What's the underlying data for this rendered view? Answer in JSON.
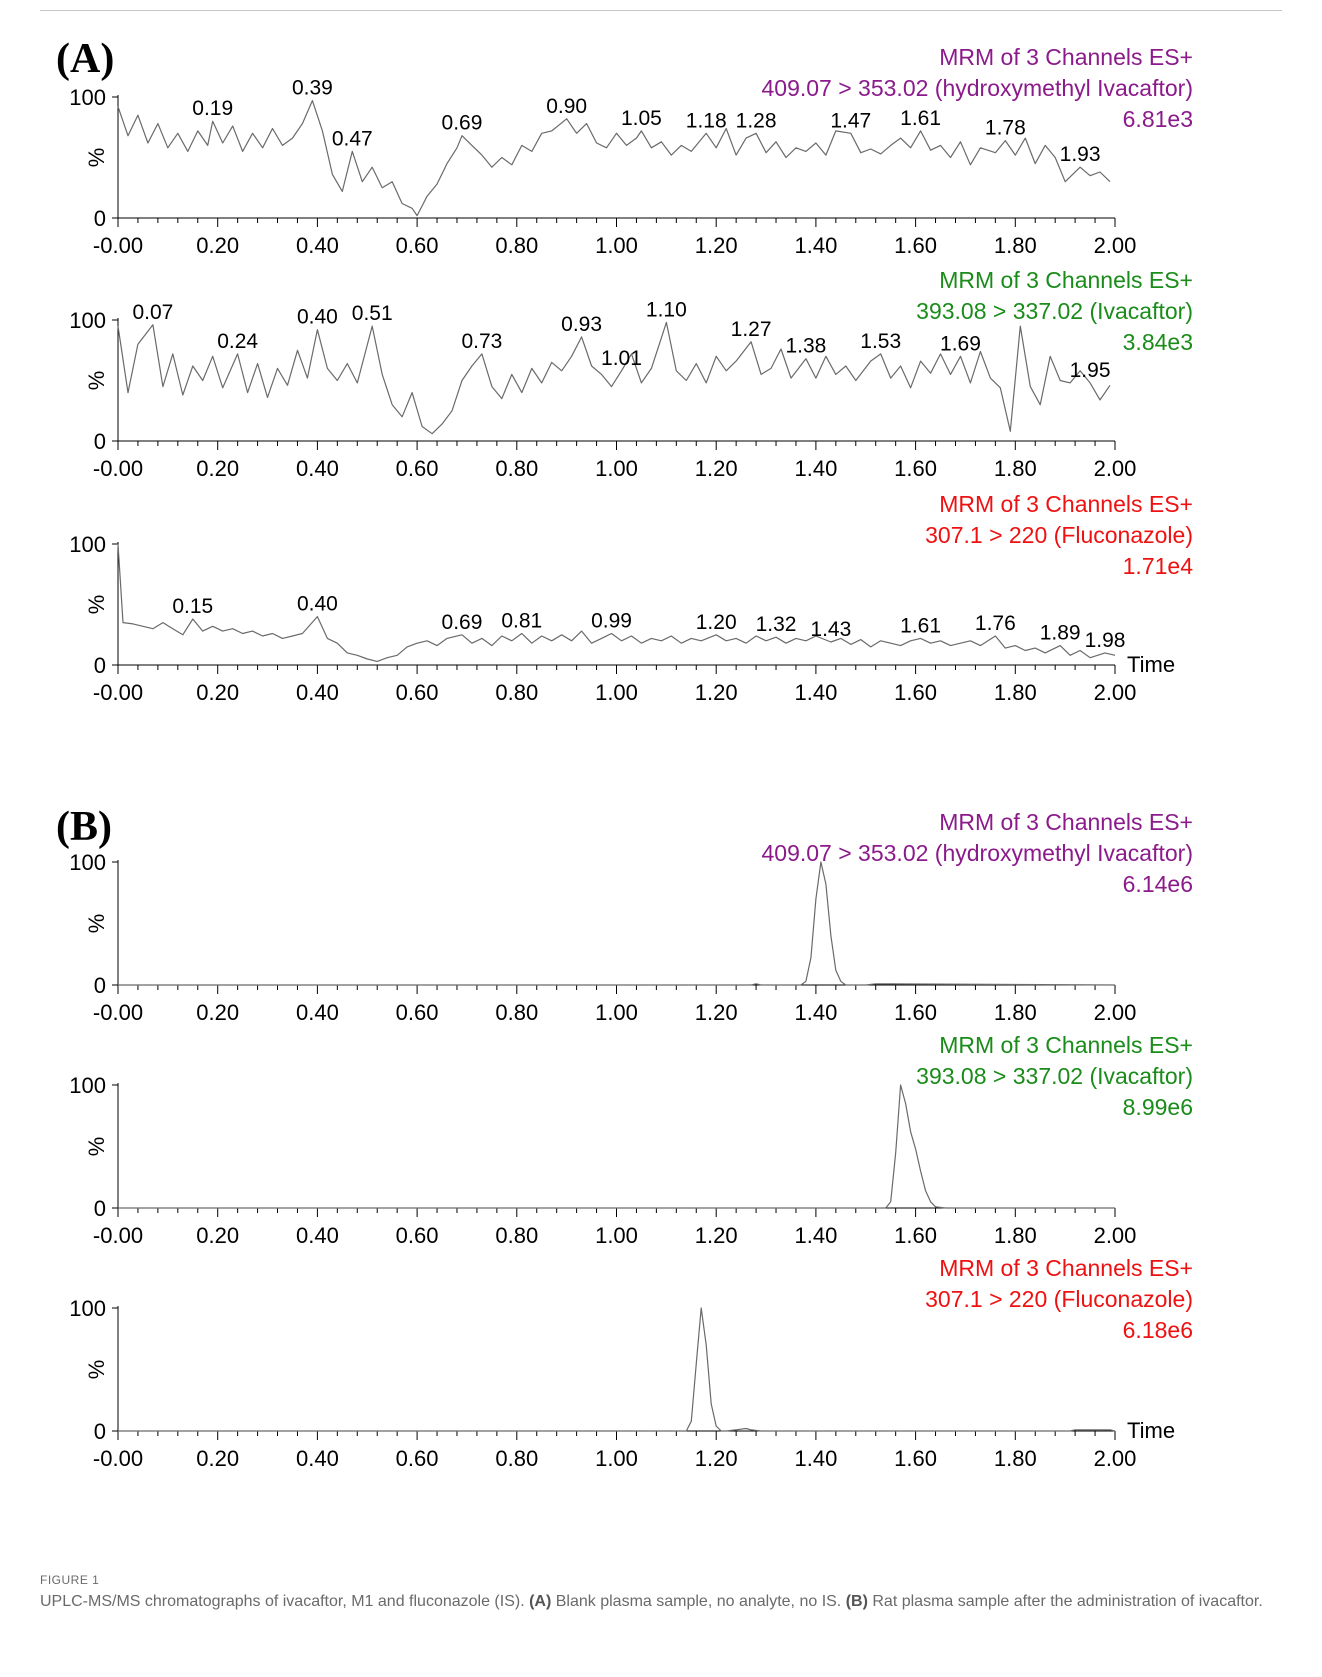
{
  "colors": {
    "purple": "#8b1a8b",
    "green": "#1a8c1a",
    "red": "#ee1111",
    "trace": "#6a6a6a",
    "axis": "#000000"
  },
  "caption": {
    "label": "FIGURE 1",
    "text_start": "UPLC-MS/MS chromatographs of ivacaftor, M1 and fluconazole (IS). ",
    "a_ref": "(A)",
    "a_text": " Blank plasma sample, no analyte, no IS. ",
    "b_ref": "(B)",
    "b_text": " Rat plasma sample after the administration of ivacaftor."
  },
  "chart_data": [
    {
      "type": "line",
      "panel": "(A)",
      "header": [
        "MRM of 3 Channels ES+",
        "409.07 > 353.02 (hydroxymethyl Ivacaftor)",
        "6.81e3"
      ],
      "color": "purple",
      "xlabel": "",
      "ylabel": "%",
      "xlim": [
        0,
        2.0
      ],
      "ylim": [
        0,
        100
      ],
      "xticks": [
        "-0.00",
        "0.20",
        "0.40",
        "0.60",
        "0.80",
        "1.00",
        "1.20",
        "1.40",
        "1.60",
        "1.80",
        "2.00"
      ],
      "yticks": [
        "0",
        "100"
      ],
      "x": [
        0,
        0.02,
        0.04,
        0.06,
        0.08,
        0.1,
        0.12,
        0.14,
        0.16,
        0.18,
        0.19,
        0.21,
        0.23,
        0.25,
        0.27,
        0.29,
        0.31,
        0.33,
        0.35,
        0.37,
        0.39,
        0.41,
        0.43,
        0.45,
        0.47,
        0.49,
        0.51,
        0.53,
        0.55,
        0.57,
        0.59,
        0.6,
        0.62,
        0.64,
        0.66,
        0.68,
        0.69,
        0.71,
        0.73,
        0.75,
        0.77,
        0.79,
        0.81,
        0.83,
        0.85,
        0.87,
        0.9,
        0.92,
        0.94,
        0.96,
        0.98,
        1.0,
        1.02,
        1.04,
        1.05,
        1.07,
        1.09,
        1.11,
        1.13,
        1.15,
        1.18,
        1.2,
        1.22,
        1.24,
        1.26,
        1.28,
        1.3,
        1.32,
        1.34,
        1.36,
        1.38,
        1.4,
        1.42,
        1.44,
        1.47,
        1.49,
        1.51,
        1.53,
        1.55,
        1.57,
        1.59,
        1.61,
        1.63,
        1.65,
        1.67,
        1.69,
        1.71,
        1.73,
        1.76,
        1.78,
        1.8,
        1.82,
        1.84,
        1.86,
        1.88,
        1.9,
        1.93,
        1.95,
        1.97,
        1.99
      ],
      "y": [
        92,
        68,
        85,
        62,
        78,
        58,
        70,
        55,
        72,
        60,
        80,
        62,
        76,
        55,
        70,
        58,
        74,
        60,
        66,
        78,
        97,
        72,
        36,
        22,
        55,
        30,
        42,
        25,
        30,
        12,
        8,
        2,
        18,
        28,
        45,
        58,
        68,
        60,
        52,
        42,
        50,
        44,
        60,
        55,
        70,
        72,
        82,
        70,
        78,
        62,
        58,
        70,
        60,
        66,
        72,
        58,
        63,
        52,
        60,
        55,
        70,
        58,
        74,
        52,
        66,
        70,
        54,
        63,
        50,
        58,
        55,
        62,
        52,
        72,
        70,
        54,
        57,
        53,
        60,
        66,
        58,
        72,
        56,
        60,
        50,
        63,
        44,
        58,
        54,
        64,
        52,
        66,
        45,
        60,
        50,
        30,
        42,
        35,
        38,
        30
      ],
      "peak_labels": [
        {
          "x": 0.19,
          "y": 80,
          "text": "0.19"
        },
        {
          "x": 0.39,
          "y": 97,
          "text": "0.39"
        },
        {
          "x": 0.47,
          "y": 55,
          "text": "0.47"
        },
        {
          "x": 0.69,
          "y": 68,
          "text": "0.69"
        },
        {
          "x": 0.9,
          "y": 82,
          "text": "0.90"
        },
        {
          "x": 1.05,
          "y": 72,
          "text": "1.05"
        },
        {
          "x": 1.18,
          "y": 70,
          "text": "1.18"
        },
        {
          "x": 1.28,
          "y": 70,
          "text": "1.28"
        },
        {
          "x": 1.47,
          "y": 70,
          "text": "1.47"
        },
        {
          "x": 1.61,
          "y": 72,
          "text": "1.61"
        },
        {
          "x": 1.78,
          "y": 64,
          "text": "1.78"
        },
        {
          "x": 1.93,
          "y": 42,
          "text": "1.93"
        }
      ]
    },
    {
      "type": "line",
      "panel": "",
      "header": [
        "MRM of 3 Channels ES+",
        "393.08 > 337.02 (Ivacaftor)",
        "3.84e3"
      ],
      "color": "green",
      "xlabel": "",
      "ylabel": "%",
      "xlim": [
        0,
        2.0
      ],
      "ylim": [
        0,
        100
      ],
      "xticks": [
        "-0.00",
        "0.20",
        "0.40",
        "0.60",
        "0.80",
        "1.00",
        "1.20",
        "1.40",
        "1.60",
        "1.80",
        "2.00"
      ],
      "yticks": [
        "0",
        "100"
      ],
      "x": [
        0,
        0.02,
        0.04,
        0.07,
        0.09,
        0.11,
        0.13,
        0.15,
        0.17,
        0.19,
        0.21,
        0.24,
        0.26,
        0.28,
        0.3,
        0.32,
        0.34,
        0.36,
        0.38,
        0.4,
        0.42,
        0.44,
        0.46,
        0.48,
        0.51,
        0.53,
        0.55,
        0.57,
        0.59,
        0.61,
        0.63,
        0.65,
        0.67,
        0.69,
        0.71,
        0.73,
        0.75,
        0.77,
        0.79,
        0.81,
        0.83,
        0.85,
        0.87,
        0.89,
        0.91,
        0.93,
        0.95,
        0.97,
        0.99,
        1.01,
        1.03,
        1.05,
        1.07,
        1.1,
        1.12,
        1.14,
        1.16,
        1.18,
        1.2,
        1.22,
        1.24,
        1.27,
        1.29,
        1.31,
        1.33,
        1.35,
        1.38,
        1.4,
        1.42,
        1.44,
        1.46,
        1.48,
        1.51,
        1.53,
        1.55,
        1.57,
        1.59,
        1.61,
        1.63,
        1.65,
        1.67,
        1.69,
        1.71,
        1.73,
        1.75,
        1.77,
        1.79,
        1.81,
        1.83,
        1.85,
        1.87,
        1.89,
        1.91,
        1.93,
        1.95,
        1.97,
        1.99
      ],
      "y": [
        95,
        40,
        80,
        96,
        45,
        72,
        38,
        62,
        50,
        70,
        44,
        72,
        40,
        64,
        36,
        60,
        46,
        75,
        52,
        92,
        60,
        50,
        64,
        48,
        95,
        55,
        30,
        20,
        40,
        12,
        6,
        14,
        25,
        50,
        62,
        72,
        45,
        35,
        55,
        40,
        60,
        48,
        65,
        58,
        70,
        86,
        62,
        55,
        45,
        58,
        72,
        48,
        60,
        98,
        58,
        50,
        64,
        48,
        70,
        58,
        66,
        82,
        55,
        60,
        76,
        52,
        68,
        52,
        70,
        55,
        62,
        50,
        66,
        72,
        52,
        62,
        44,
        66,
        56,
        72,
        55,
        70,
        48,
        74,
        52,
        44,
        8,
        95,
        45,
        30,
        70,
        50,
        48,
        58,
        48,
        34,
        46
      ],
      "peak_labels": [
        {
          "x": 0.07,
          "y": 96,
          "text": "0.07"
        },
        {
          "x": 0.24,
          "y": 72,
          "text": "0.24"
        },
        {
          "x": 0.4,
          "y": 92,
          "text": "0.40"
        },
        {
          "x": 0.51,
          "y": 95,
          "text": "0.51"
        },
        {
          "x": 0.73,
          "y": 72,
          "text": "0.73"
        },
        {
          "x": 0.93,
          "y": 86,
          "text": "0.93"
        },
        {
          "x": 1.01,
          "y": 58,
          "text": "1.01"
        },
        {
          "x": 1.1,
          "y": 98,
          "text": "1.10"
        },
        {
          "x": 1.27,
          "y": 82,
          "text": "1.27"
        },
        {
          "x": 1.38,
          "y": 68,
          "text": "1.38"
        },
        {
          "x": 1.53,
          "y": 72,
          "text": "1.53"
        },
        {
          "x": 1.69,
          "y": 70,
          "text": "1.69"
        },
        {
          "x": 1.95,
          "y": 48,
          "text": "1.95"
        }
      ]
    },
    {
      "type": "line",
      "panel": "",
      "header": [
        "MRM of 3 Channels ES+",
        "307.1 > 220 (Fluconazole)",
        "1.71e4"
      ],
      "color": "red",
      "xlabel": "Time",
      "ylabel": "%",
      "xlim": [
        0,
        2.0
      ],
      "ylim": [
        0,
        100
      ],
      "xticks": [
        "-0.00",
        "0.20",
        "0.40",
        "0.60",
        "0.80",
        "1.00",
        "1.20",
        "1.40",
        "1.60",
        "1.80",
        "2.00"
      ],
      "yticks": [
        "0",
        "100"
      ],
      "x": [
        0,
        0.01,
        0.03,
        0.05,
        0.07,
        0.09,
        0.11,
        0.13,
        0.15,
        0.17,
        0.19,
        0.21,
        0.23,
        0.25,
        0.27,
        0.29,
        0.31,
        0.33,
        0.35,
        0.37,
        0.4,
        0.42,
        0.44,
        0.46,
        0.48,
        0.5,
        0.52,
        0.54,
        0.56,
        0.58,
        0.6,
        0.62,
        0.64,
        0.66,
        0.69,
        0.71,
        0.73,
        0.75,
        0.77,
        0.79,
        0.81,
        0.83,
        0.85,
        0.87,
        0.89,
        0.91,
        0.93,
        0.95,
        0.97,
        0.99,
        1.01,
        1.03,
        1.05,
        1.07,
        1.09,
        1.11,
        1.13,
        1.15,
        1.17,
        1.2,
        1.22,
        1.24,
        1.26,
        1.28,
        1.3,
        1.32,
        1.34,
        1.36,
        1.38,
        1.4,
        1.43,
        1.45,
        1.47,
        1.49,
        1.51,
        1.53,
        1.55,
        1.57,
        1.59,
        1.61,
        1.63,
        1.65,
        1.67,
        1.69,
        1.71,
        1.73,
        1.76,
        1.78,
        1.8,
        1.82,
        1.84,
        1.86,
        1.89,
        1.91,
        1.93,
        1.95,
        1.98,
        2.0
      ],
      "y": [
        100,
        35,
        34,
        32,
        30,
        35,
        30,
        25,
        38,
        28,
        32,
        28,
        30,
        26,
        28,
        24,
        26,
        22,
        24,
        26,
        40,
        22,
        18,
        10,
        8,
        5,
        3,
        6,
        8,
        15,
        18,
        20,
        16,
        22,
        25,
        18,
        22,
        16,
        24,
        20,
        26,
        18,
        24,
        20,
        25,
        20,
        28,
        18,
        22,
        26,
        20,
        24,
        18,
        22,
        20,
        24,
        18,
        22,
        20,
        25,
        20,
        22,
        18,
        24,
        20,
        23,
        18,
        22,
        20,
        24,
        19,
        22,
        17,
        21,
        15,
        20,
        18,
        16,
        20,
        22,
        18,
        20,
        16,
        18,
        20,
        16,
        24,
        14,
        16,
        12,
        14,
        10,
        16,
        8,
        12,
        6,
        10,
        8
      ],
      "peak_labels": [
        {
          "x": 0.15,
          "y": 38,
          "text": "0.15"
        },
        {
          "x": 0.4,
          "y": 40,
          "text": "0.40"
        },
        {
          "x": 0.69,
          "y": 25,
          "text": "0.69"
        },
        {
          "x": 0.81,
          "y": 26,
          "text": "0.81"
        },
        {
          "x": 0.99,
          "y": 26,
          "text": "0.99"
        },
        {
          "x": 1.2,
          "y": 25,
          "text": "1.20"
        },
        {
          "x": 1.32,
          "y": 23,
          "text": "1.32"
        },
        {
          "x": 1.43,
          "y": 19,
          "text": "1.43"
        },
        {
          "x": 1.61,
          "y": 22,
          "text": "1.61"
        },
        {
          "x": 1.76,
          "y": 24,
          "text": "1.76"
        },
        {
          "x": 1.89,
          "y": 16,
          "text": "1.89"
        },
        {
          "x": 1.98,
          "y": 10,
          "text": "1.98"
        }
      ]
    },
    {
      "type": "line",
      "panel": "(B)",
      "header": [
        "MRM of 3 Channels ES+",
        "409.07 > 353.02 (hydroxymethyl Ivacaftor)",
        "6.14e6"
      ],
      "color": "purple",
      "xlabel": "",
      "ylabel": "%",
      "xlim": [
        0,
        2.0
      ],
      "ylim": [
        0,
        100
      ],
      "xticks": [
        "-0.00",
        "0.20",
        "0.40",
        "0.60",
        "0.80",
        "1.00",
        "1.20",
        "1.40",
        "1.60",
        "1.80",
        "2.00"
      ],
      "yticks": [
        "0",
        "100"
      ],
      "x": [
        0,
        1.27,
        1.28,
        1.29,
        1.37,
        1.38,
        1.39,
        1.4,
        1.41,
        1.42,
        1.43,
        1.44,
        1.45,
        1.46,
        1.5,
        1.52,
        2.0
      ],
      "y": [
        0,
        0,
        1,
        0,
        0,
        3,
        22,
        70,
        100,
        82,
        40,
        12,
        3,
        0,
        0,
        1,
        0
      ],
      "peak_labels": []
    },
    {
      "type": "line",
      "panel": "",
      "header": [
        "MRM of 3 Channels ES+",
        "393.08 > 337.02 (Ivacaftor)",
        "8.99e6"
      ],
      "color": "green",
      "xlabel": "",
      "ylabel": "%",
      "xlim": [
        0,
        2.0
      ],
      "ylim": [
        0,
        100
      ],
      "xticks": [
        "-0.00",
        "0.20",
        "0.40",
        "0.60",
        "0.80",
        "1.00",
        "1.20",
        "1.40",
        "1.60",
        "1.80",
        "2.00"
      ],
      "yticks": [
        "0",
        "100"
      ],
      "x": [
        0,
        1.54,
        1.55,
        1.56,
        1.57,
        1.58,
        1.59,
        1.6,
        1.61,
        1.62,
        1.63,
        1.64,
        1.66,
        2.0
      ],
      "y": [
        0,
        0,
        5,
        45,
        100,
        85,
        62,
        48,
        30,
        14,
        5,
        1,
        0,
        0
      ],
      "peak_labels": []
    },
    {
      "type": "line",
      "panel": "",
      "header": [
        "MRM of 3 Channels ES+",
        "307.1 > 220 (Fluconazole)",
        "6.18e6"
      ],
      "color": "red",
      "xlabel": "Time",
      "ylabel": "%",
      "xlim": [
        0,
        2.0
      ],
      "ylim": [
        0,
        100
      ],
      "xticks": [
        "-0.00",
        "0.20",
        "0.40",
        "0.60",
        "0.80",
        "1.00",
        "1.20",
        "1.40",
        "1.60",
        "1.80",
        "2.00"
      ],
      "yticks": [
        "0",
        "100"
      ],
      "x": [
        0,
        1.14,
        1.15,
        1.16,
        1.17,
        1.18,
        1.19,
        1.2,
        1.21,
        1.22,
        1.24,
        1.26,
        1.27,
        1.29,
        1.3,
        1.91,
        1.92,
        1.99,
        2.0
      ],
      "y": [
        0,
        0,
        8,
        55,
        100,
        70,
        22,
        4,
        0,
        0,
        1,
        2,
        1,
        0,
        0,
        0,
        1,
        1,
        0
      ],
      "peak_labels": []
    }
  ]
}
